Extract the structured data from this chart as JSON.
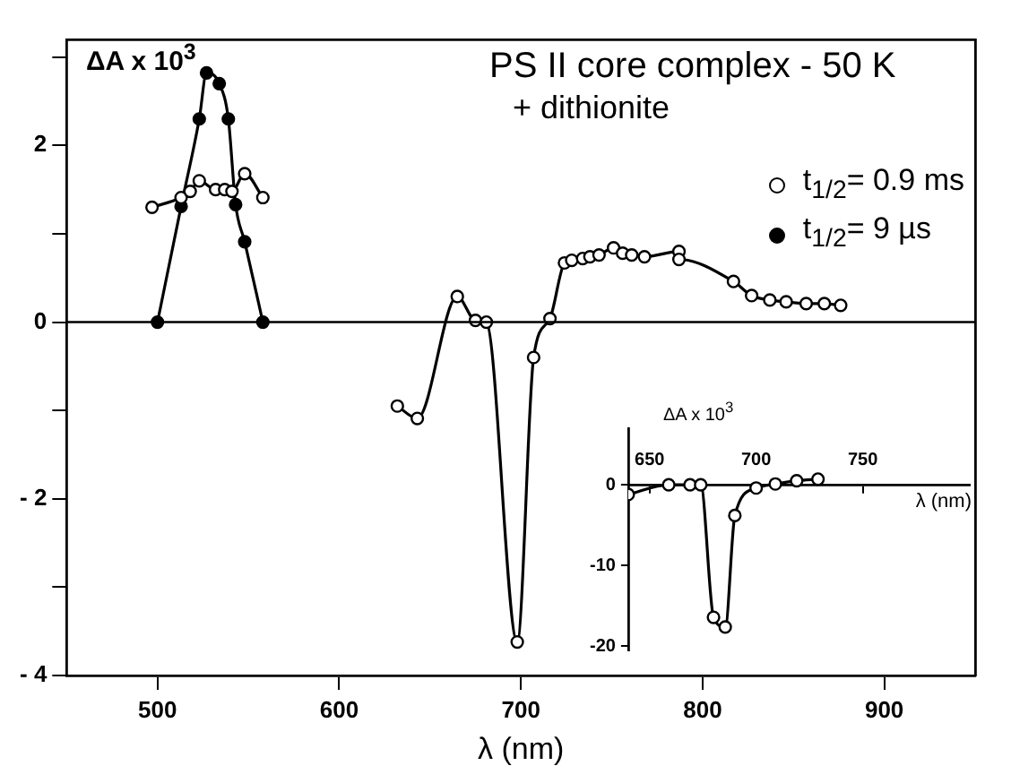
{
  "chart_data": [
    {
      "type": "line",
      "title": "PS II core complex - 50 K",
      "subtitle": "+ dithionite",
      "xlabel": "λ (nm)",
      "ylabel": "ΔA x 10$^{3}$",
      "xlim": [
        450,
        950
      ],
      "xticks": [
        500,
        600,
        700,
        800,
        900
      ],
      "ylim": [
        -4,
        3.2
      ],
      "yticks": [
        {
          "value": -4,
          "label": "- 4"
        },
        {
          "value": -3,
          "label": null
        },
        {
          "value": -2,
          "label": "- 2"
        },
        {
          "value": -1,
          "label": null
        },
        0,
        {
          "value": 1,
          "label": null
        },
        2,
        {
          "value": 3,
          "label": null
        }
      ],
      "grid": false,
      "legend": "top right",
      "marker": "circle",
      "line_style": "solid",
      "ref_lines": [
        {
          "axis": "y",
          "value": 0,
          "color": "#000000"
        }
      ],
      "series": [
        {
          "name": "t$_{1/2}$= 0.9 ms",
          "color": "#000000",
          "x": [
            497,
            513,
            518,
            523,
            532,
            537,
            541,
            548,
            558,
            600,
            632,
            643,
            665,
            675,
            681,
            698,
            707,
            716,
            724,
            728,
            734,
            738,
            743,
            751,
            756,
            761,
            768,
            787,
            787,
            817,
            827,
            837,
            846,
            857,
            867,
            876
          ],
          "values": [
            1.3,
            1.41,
            1.48,
            1.6,
            1.5,
            1.5,
            1.48,
            1.68,
            1.41,
            null,
            -0.95,
            -1.09,
            0.29,
            0.02,
            0,
            -3.62,
            -0.4,
            0.04,
            0.67,
            0.7,
            0.72,
            0.74,
            0.76,
            0.84,
            0.78,
            0.76,
            0.74,
            0.8,
            0.71,
            0.46,
            0.3,
            0.25,
            0.23,
            0.21,
            0.21,
            0.19
          ]
        },
        {
          "name": "t$_{1/2}$= 9 µs",
          "color": "#000000",
          "x": [
            500,
            513,
            523,
            527,
            534,
            539,
            543,
            548,
            558
          ],
          "values": [
            0,
            1.31,
            2.3,
            2.82,
            2.7,
            2.3,
            1.33,
            0.91,
            0
          ]
        }
      ]
    },
    {
      "type": "line",
      "xlabel": "λ (nm)",
      "ylabel": "ΔA x 10$^{3}$",
      "xlim": [
        640,
        800
      ],
      "xticks": [
        650,
        700,
        750
      ],
      "ylim": [
        -20.5,
        7
      ],
      "yticks": [
        0,
        -10,
        -20
      ],
      "grid": false,
      "marker": "circle",
      "line_style": "solid",
      "series": [
        {
          "color": "#000000",
          "x": [
            640,
            659,
            669,
            674,
            680,
            685.5,
            690,
            700,
            709,
            719,
            729
          ],
          "values": [
            -1.2,
            0,
            0,
            0,
            -16.4,
            -17.6,
            -3.8,
            -0.4,
            0.1,
            0.5,
            0.7
          ]
        }
      ]
    }
  ]
}
